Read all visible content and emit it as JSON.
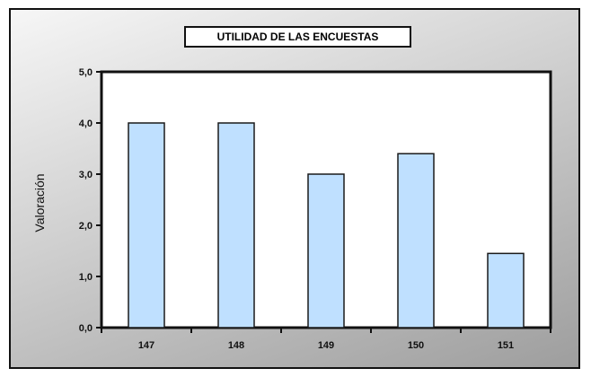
{
  "chart_data": {
    "type": "bar",
    "title": "UTILIDAD DE LAS ENCUESTAS",
    "xlabel": "",
    "ylabel": "Valoración",
    "categories": [
      "147",
      "148",
      "149",
      "150",
      "151"
    ],
    "values": [
      4.0,
      4.0,
      3.0,
      3.4,
      1.45
    ],
    "ylim": [
      0,
      5
    ],
    "yticks": [
      "0,0",
      "1,0",
      "2,0",
      "3,0",
      "4,0",
      "5,0"
    ],
    "grid": false,
    "colors": {
      "bar": "#bfe0ff",
      "bar_stroke": "#1a1a1a"
    }
  }
}
